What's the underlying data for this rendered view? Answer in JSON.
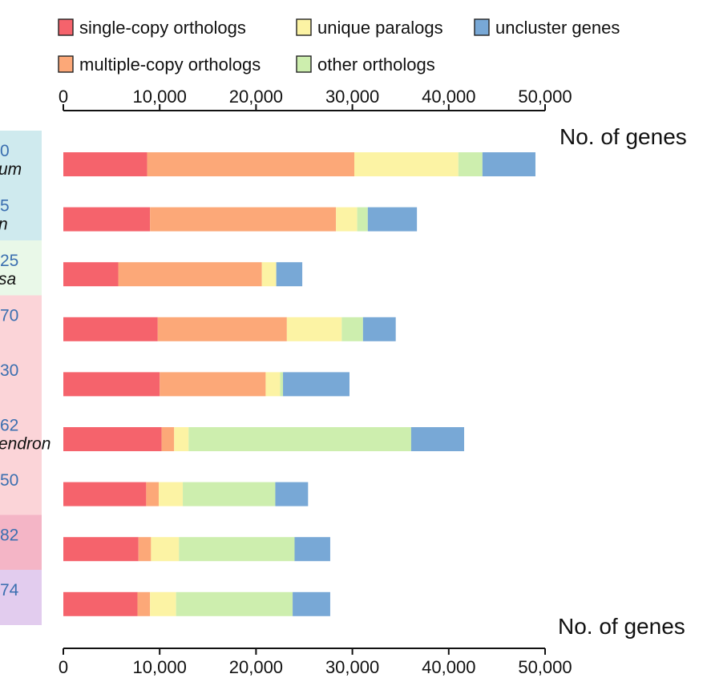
{
  "chart_data": {
    "type": "stacked-bar-horizontal",
    "xlabel": "No. of genes",
    "xlim": [
      0,
      50000
    ],
    "ticks": [
      "0",
      "10,000",
      "20,000",
      "30,000",
      "40,000",
      "50,000"
    ],
    "legend": [
      {
        "key": "single",
        "label": "single-copy orthologs",
        "color": "#f5636c"
      },
      {
        "key": "unique",
        "label": "unique paralogs",
        "color": "#fcf3a4"
      },
      {
        "key": "unclustered",
        "label": "uncluster genes",
        "color": "#78a8d6"
      },
      {
        "key": "multiple",
        "label": "multiple-copy orthologs",
        "color": "#fca878"
      },
      {
        "key": "other",
        "label": "other orthologs",
        "color": "#cdeeae"
      }
    ],
    "series_order": [
      "single",
      "multiple",
      "unique",
      "other",
      "unclustered"
    ],
    "rows": [
      {
        "label_num": "0",
        "label_name": "um",
        "band_color": "#cfeaee",
        "single": 8700,
        "multiple": 21500,
        "unique": 10800,
        "other": 2500,
        "unclustered": 5500
      },
      {
        "label_num": "5",
        "label_name": "n",
        "band_color": "#cfeaee",
        "single": 9000,
        "multiple": 19300,
        "unique": 2200,
        "other": 1100,
        "unclustered": 5100
      },
      {
        "label_num": "25",
        "label_name": "sa",
        "band_color": "#e9f8e8",
        "single": 5700,
        "multiple": 14900,
        "unique": 1500,
        "other": 0,
        "unclustered": 2700
      },
      {
        "label_num": "70",
        "label_name": "",
        "band_color": "#fbd4d8",
        "single": 9800,
        "multiple": 13400,
        "unique": 5700,
        "other": 2200,
        "unclustered": 3400
      },
      {
        "label_num": "30",
        "label_name": "",
        "band_color": "#fbd4d8",
        "single": 10000,
        "multiple": 11000,
        "unique": 1500,
        "other": 300,
        "unclustered": 6900
      },
      {
        "label_num": "62",
        "label_name": "endron",
        "band_color": "#fbd4d8",
        "single": 10200,
        "multiple": 1300,
        "unique": 1500,
        "other": 23100,
        "unclustered": 5500
      },
      {
        "label_num": "50",
        "label_name": "",
        "band_color": "#fbd4d8",
        "single": 8600,
        "multiple": 1300,
        "unique": 2500,
        "other": 9600,
        "unclustered": 3400
      },
      {
        "label_num": "82",
        "label_name": "",
        "band_color": "#f4b5c6",
        "single": 7800,
        "multiple": 1300,
        "unique": 2900,
        "other": 12000,
        "unclustered": 3700
      },
      {
        "label_num": "74",
        "label_name": "",
        "band_color": "#e2ccee",
        "single": 7700,
        "multiple": 1300,
        "unique": 2700,
        "other": 12100,
        "unclustered": 3900
      }
    ]
  }
}
